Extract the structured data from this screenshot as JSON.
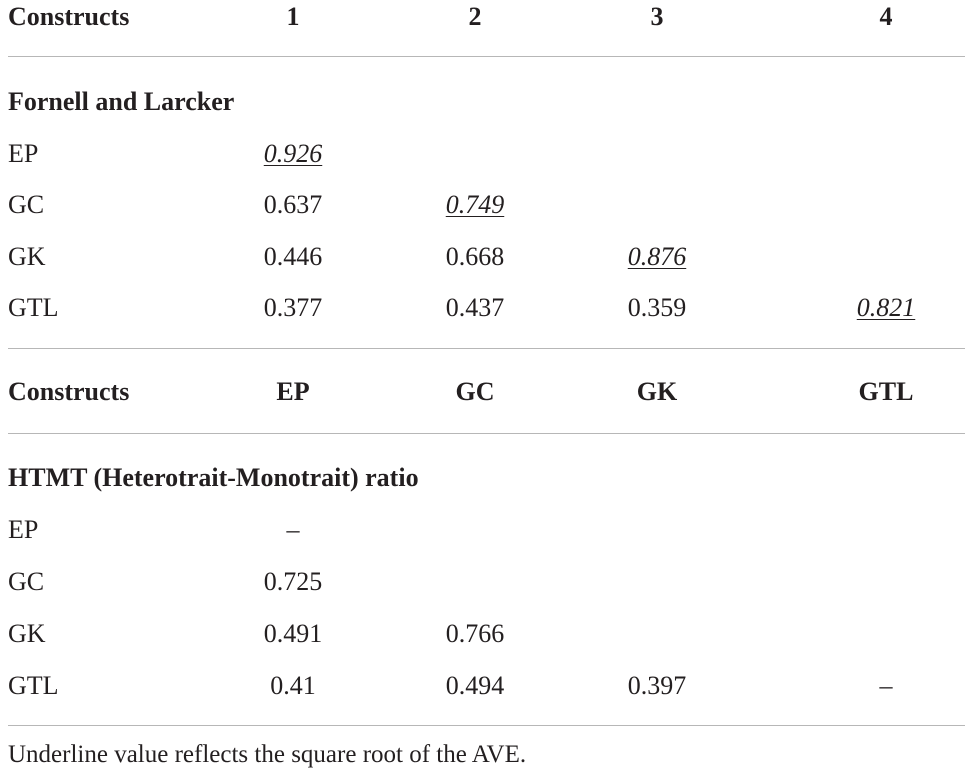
{
  "header1": {
    "label": "Constructs",
    "cols": [
      "1",
      "2",
      "3",
      "4"
    ]
  },
  "section1": {
    "title": "Fornell and Larcker",
    "rows": [
      {
        "label": "EP",
        "values": [
          "0.926",
          "",
          "",
          ""
        ]
      },
      {
        "label": "GC",
        "values": [
          "0.637",
          "0.749",
          "",
          ""
        ]
      },
      {
        "label": "GK",
        "values": [
          "0.446",
          "0.668",
          "0.876",
          ""
        ]
      },
      {
        "label": "GTL",
        "values": [
          "0.377",
          "0.437",
          "0.359",
          "0.821"
        ]
      }
    ]
  },
  "header2": {
    "label": "Constructs",
    "cols": [
      "EP",
      "GC",
      "GK",
      "GTL"
    ]
  },
  "section2": {
    "title": "HTMT (Heterotrait-Monotrait) ratio",
    "rows": [
      {
        "label": "EP",
        "values": [
          "–",
          "",
          "",
          ""
        ]
      },
      {
        "label": "GC",
        "values": [
          "0.725",
          "",
          "",
          ""
        ]
      },
      {
        "label": "GK",
        "values": [
          "0.491",
          "0.766",
          "",
          ""
        ]
      },
      {
        "label": "GTL",
        "values": [
          "0.41",
          "0.494",
          "0.397",
          "–"
        ]
      }
    ]
  },
  "footnote": "Underline value reflects the square root of the AVE."
}
